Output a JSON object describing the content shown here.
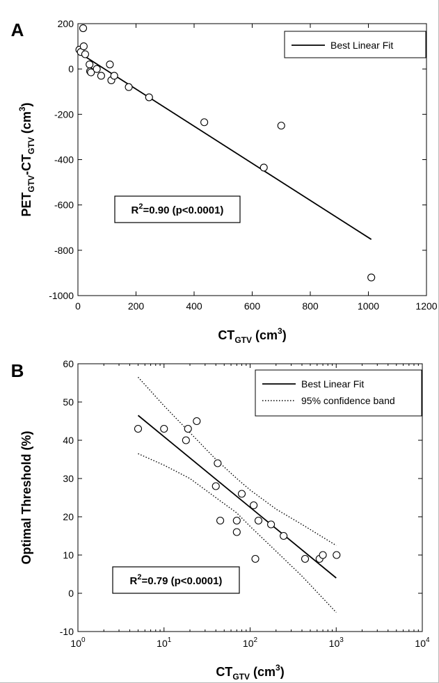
{
  "chart_data": [
    {
      "panel_letter": "A",
      "type": "scatter",
      "xlim": [
        0,
        1200
      ],
      "ylim": [
        -1000,
        200
      ],
      "xticks": [
        "0",
        "200",
        "400",
        "600",
        "800",
        "1000",
        "1200"
      ],
      "yticks": [
        "-1000",
        "-800",
        "-600",
        "-400",
        "-200",
        "0",
        "200"
      ],
      "xlabel": {
        "main": "CT",
        "sub": "GTV",
        "unit": " (cm",
        "sup": "3",
        "close": ")"
      },
      "ylabel": {
        "p1": "PET",
        "s1": "GTV",
        "p2": "-CT",
        "s2": "GTV",
        "p3": " (cm",
        "sup": "3",
        "close": ")"
      },
      "legend": {
        "position": "top-right",
        "entries": [
          {
            "label": "Best Linear Fit",
            "style": "solid"
          }
        ]
      },
      "annotation": {
        "pre": "R",
        "sup": "2",
        "post": "=0.90 (p<0.0001)"
      },
      "fit_line": [
        [
          0,
          75
        ],
        [
          1010,
          -752
        ]
      ],
      "points": [
        [
          5,
          85
        ],
        [
          10,
          75
        ],
        [
          18,
          180
        ],
        [
          20,
          100
        ],
        [
          25,
          65
        ],
        [
          40,
          20
        ],
        [
          42,
          -10
        ],
        [
          45,
          -15
        ],
        [
          65,
          0
        ],
        [
          80,
          -30
        ],
        [
          110,
          20
        ],
        [
          115,
          -50
        ],
        [
          125,
          -30
        ],
        [
          175,
          -80
        ],
        [
          245,
          -125
        ],
        [
          435,
          -235
        ],
        [
          640,
          -435
        ],
        [
          700,
          -250
        ],
        [
          1010,
          -920
        ]
      ]
    },
    {
      "panel_letter": "B",
      "type": "scatter",
      "xscale": "log",
      "xlim": [
        1,
        10000
      ],
      "ylim": [
        -10,
        60
      ],
      "xticks": [
        {
          "b": "10",
          "e": "0"
        },
        {
          "b": "10",
          "e": "1"
        },
        {
          "b": "10",
          "e": "2"
        },
        {
          "b": "10",
          "e": "3"
        },
        {
          "b": "10",
          "e": "4"
        }
      ],
      "yticks": [
        "-10",
        "0",
        "10",
        "20",
        "30",
        "40",
        "50",
        "60"
      ],
      "xlabel": {
        "main": "CT",
        "sub": "GTV",
        "unit": " (cm",
        "sup": "3",
        "close": ")"
      },
      "ylabel": "Optimal Threshold (%)",
      "legend": {
        "position": "top-right",
        "entries": [
          {
            "label": "Best Linear Fit",
            "style": "solid"
          },
          {
            "label": "95% confidence band",
            "style": "dotted"
          }
        ]
      },
      "annotation": {
        "pre": "R",
        "sup": "2",
        "post": "=0.79 (p<0.0001)"
      },
      "fit_line": [
        [
          5,
          46.5
        ],
        [
          1000,
          4
        ]
      ],
      "band_upper": [
        [
          5,
          56.5
        ],
        [
          10,
          49
        ],
        [
          20,
          42
        ],
        [
          40,
          35
        ],
        [
          70,
          30
        ],
        [
          100,
          27
        ],
        [
          200,
          22
        ],
        [
          400,
          18
        ],
        [
          1000,
          12.5
        ]
      ],
      "band_lower": [
        [
          5,
          36.5
        ],
        [
          10,
          33.5
        ],
        [
          20,
          30
        ],
        [
          40,
          25
        ],
        [
          70,
          21
        ],
        [
          100,
          17.5
        ],
        [
          200,
          11
        ],
        [
          400,
          4.5
        ],
        [
          1000,
          -5
        ]
      ],
      "points": [
        [
          5,
          43
        ],
        [
          10,
          43
        ],
        [
          18,
          40
        ],
        [
          19,
          43
        ],
        [
          24,
          45
        ],
        [
          40,
          28
        ],
        [
          42,
          34
        ],
        [
          45,
          19
        ],
        [
          70,
          19
        ],
        [
          70,
          16
        ],
        [
          80,
          26
        ],
        [
          110,
          23
        ],
        [
          115,
          9
        ],
        [
          125,
          19
        ],
        [
          175,
          18
        ],
        [
          245,
          15
        ],
        [
          435,
          9
        ],
        [
          640,
          9
        ],
        [
          700,
          10
        ],
        [
          1010,
          10
        ]
      ]
    }
  ]
}
